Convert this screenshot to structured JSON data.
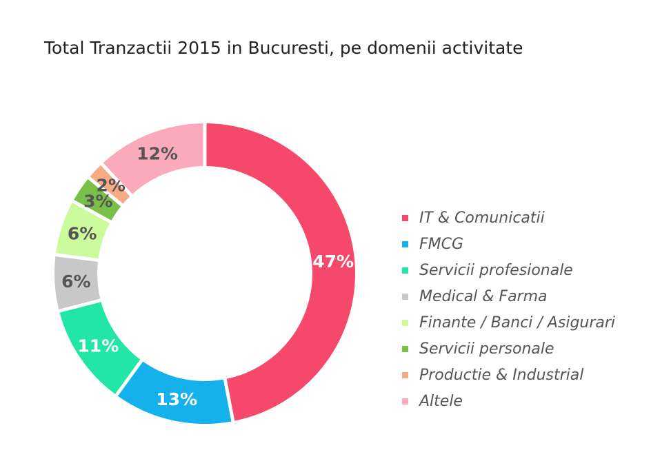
{
  "chart_data": {
    "type": "pie",
    "title": "Total Tranzactii 2015 in Bucuresti, pe domenii activitate",
    "legend_position": "right",
    "series": [
      {
        "name": "IT & Comunicatii",
        "value": 47,
        "label": "47%",
        "color": "#f5486a",
        "label_color": "#ffffff"
      },
      {
        "name": "FMCG",
        "value": 13,
        "label": "13%",
        "color": "#14b1ec",
        "label_color": "#ffffff"
      },
      {
        "name": "Servicii profesionale",
        "value": 11,
        "label": "11%",
        "color": "#21e6a6",
        "label_color": "#ffffff"
      },
      {
        "name": "Medical & Farma",
        "value": 6,
        "label": "6%",
        "color": "#c8c8c8",
        "label_color": "#555555"
      },
      {
        "name": "Finante / Banci / Asigurari",
        "value": 6,
        "label": "6%",
        "color": "#cbfb9c",
        "label_color": "#555555"
      },
      {
        "name": "Servicii personale",
        "value": 3,
        "label": "3%",
        "color": "#79c04a",
        "label_color": "#555555"
      },
      {
        "name": "Productie & Industrial",
        "value": 2,
        "label": "2%",
        "color": "#f6ab84",
        "label_color": "#555555"
      },
      {
        "name": "Altele",
        "value": 12,
        "label": "12%",
        "color": "#fbaabc",
        "label_color": "#555555"
      }
    ]
  }
}
